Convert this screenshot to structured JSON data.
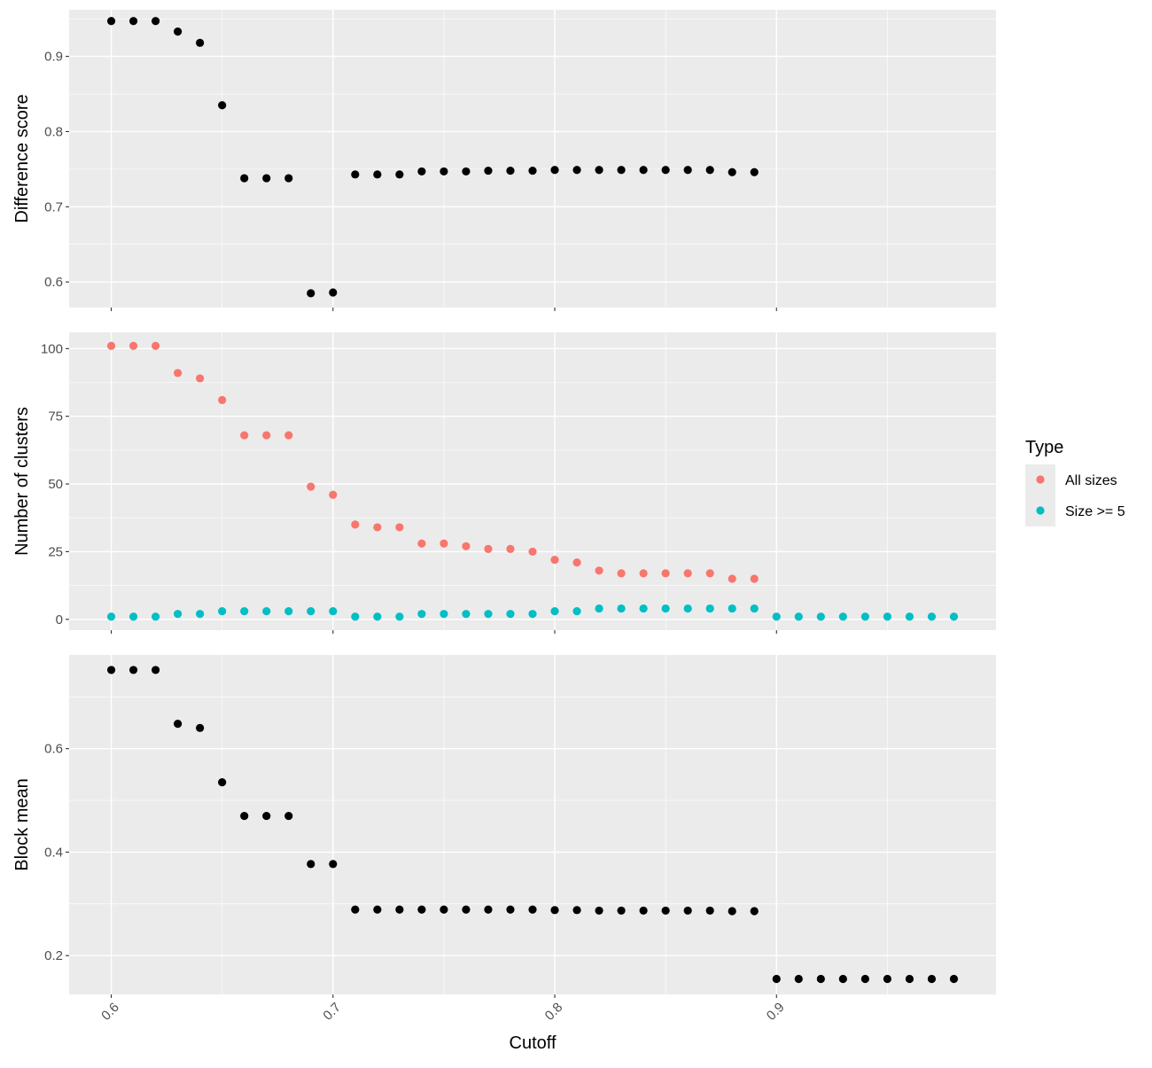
{
  "figure": {
    "xlabel": "Cutoff"
  },
  "legend": {
    "title": "Type",
    "position": "right"
  },
  "colors": {
    "panel_bg": "#ebebeb",
    "grid_major": "#ffffff",
    "point_black": "#000000",
    "all_sizes": "#f8766d",
    "size_ge_5": "#00bfc4"
  },
  "chart_data": [
    {
      "type": "scatter",
      "id": "difference",
      "ylabel": "Difference score",
      "xlim": [
        0.581,
        0.999
      ],
      "ylim": [
        0.566,
        0.962
      ],
      "xticks": [
        0.6,
        0.7,
        0.8,
        0.9
      ],
      "xtick_labels": [
        "0.6",
        "0.7",
        "0.8",
        "0.9"
      ],
      "yticks": [
        0.6,
        0.7,
        0.8,
        0.9
      ],
      "ytick_labels": [
        "0.6",
        "0.7",
        "0.8",
        "0.9"
      ],
      "grid": true,
      "series": [
        {
          "color": "#000000",
          "x": [
            0.6,
            0.61,
            0.62,
            0.63,
            0.64,
            0.65,
            0.66,
            0.67,
            0.68,
            0.69,
            0.7,
            0.71,
            0.72,
            0.73,
            0.74,
            0.75,
            0.76,
            0.77,
            0.78,
            0.79,
            0.8,
            0.81,
            0.82,
            0.83,
            0.84,
            0.85,
            0.86,
            0.87,
            0.88,
            0.89
          ],
          "y": [
            0.947,
            0.947,
            0.947,
            0.933,
            0.918,
            0.835,
            0.738,
            0.738,
            0.738,
            0.585,
            0.586,
            0.743,
            0.743,
            0.743,
            0.747,
            0.747,
            0.747,
            0.748,
            0.748,
            0.748,
            0.749,
            0.749,
            0.749,
            0.749,
            0.749,
            0.749,
            0.749,
            0.749,
            0.746,
            0.746
          ]
        }
      ]
    },
    {
      "type": "scatter",
      "id": "clusters",
      "ylabel": "Number of clusters",
      "xlim": [
        0.581,
        0.999
      ],
      "ylim": [
        -4,
        106
      ],
      "xticks": [
        0.6,
        0.7,
        0.8,
        0.9
      ],
      "xtick_labels": [
        "0.6",
        "0.7",
        "0.8",
        "0.9"
      ],
      "yticks": [
        0,
        25,
        50,
        75,
        100
      ],
      "ytick_labels": [
        "0",
        "25",
        "50",
        "75",
        "100"
      ],
      "grid": true,
      "series": [
        {
          "name": "All sizes",
          "color": "#f8766d",
          "x": [
            0.6,
            0.61,
            0.62,
            0.63,
            0.64,
            0.65,
            0.66,
            0.67,
            0.68,
            0.69,
            0.7,
            0.71,
            0.72,
            0.73,
            0.74,
            0.75,
            0.76,
            0.77,
            0.78,
            0.79,
            0.8,
            0.81,
            0.82,
            0.83,
            0.84,
            0.85,
            0.86,
            0.87,
            0.88,
            0.89
          ],
          "y": [
            101,
            101,
            101,
            91,
            89,
            81,
            68,
            68,
            68,
            49,
            46,
            35,
            34,
            34,
            28,
            28,
            27,
            26,
            26,
            25,
            22,
            21,
            18,
            17,
            17,
            17,
            17,
            17,
            15,
            15
          ]
        },
        {
          "name": "Size >= 5",
          "color": "#00bfc4",
          "x": [
            0.6,
            0.61,
            0.62,
            0.63,
            0.64,
            0.65,
            0.66,
            0.67,
            0.68,
            0.69,
            0.7,
            0.71,
            0.72,
            0.73,
            0.74,
            0.75,
            0.76,
            0.77,
            0.78,
            0.79,
            0.8,
            0.81,
            0.82,
            0.83,
            0.84,
            0.85,
            0.86,
            0.87,
            0.88,
            0.89,
            0.9,
            0.91,
            0.92,
            0.93,
            0.94,
            0.95,
            0.96,
            0.97,
            0.98
          ],
          "y": [
            1,
            1,
            1,
            2,
            2,
            3,
            3,
            3,
            3,
            3,
            3,
            1,
            1,
            1,
            2,
            2,
            2,
            2,
            2,
            2,
            3,
            3,
            4,
            4,
            4,
            4,
            4,
            4,
            4,
            4,
            1,
            1,
            1,
            1,
            1,
            1,
            1,
            1,
            1
          ]
        }
      ]
    },
    {
      "type": "scatter",
      "id": "blockmean",
      "ylabel": "Block mean",
      "xlim": [
        0.581,
        0.999
      ],
      "ylim": [
        0.125,
        0.781
      ],
      "xticks": [
        0.6,
        0.7,
        0.8,
        0.9
      ],
      "xtick_labels": [
        "0.6",
        "0.7",
        "0.8",
        "0.9"
      ],
      "yticks": [
        0.2,
        0.4,
        0.6
      ],
      "ytick_labels": [
        "0.2",
        "0.4",
        "0.6"
      ],
      "grid": true,
      "series": [
        {
          "color": "#000000",
          "x": [
            0.6,
            0.61,
            0.62,
            0.63,
            0.64,
            0.65,
            0.66,
            0.67,
            0.68,
            0.69,
            0.7,
            0.71,
            0.72,
            0.73,
            0.74,
            0.75,
            0.76,
            0.77,
            0.78,
            0.79,
            0.8,
            0.81,
            0.82,
            0.83,
            0.84,
            0.85,
            0.86,
            0.87,
            0.88,
            0.89,
            0.9,
            0.91,
            0.92,
            0.93,
            0.94,
            0.95,
            0.96,
            0.97,
            0.98
          ],
          "y": [
            0.752,
            0.752,
            0.752,
            0.648,
            0.64,
            0.535,
            0.47,
            0.47,
            0.47,
            0.377,
            0.377,
            0.289,
            0.289,
            0.289,
            0.289,
            0.289,
            0.289,
            0.289,
            0.289,
            0.289,
            0.288,
            0.288,
            0.287,
            0.287,
            0.287,
            0.287,
            0.287,
            0.287,
            0.286,
            0.286,
            0.155,
            0.155,
            0.155,
            0.155,
            0.155,
            0.155,
            0.155,
            0.155,
            0.155
          ]
        }
      ]
    }
  ]
}
